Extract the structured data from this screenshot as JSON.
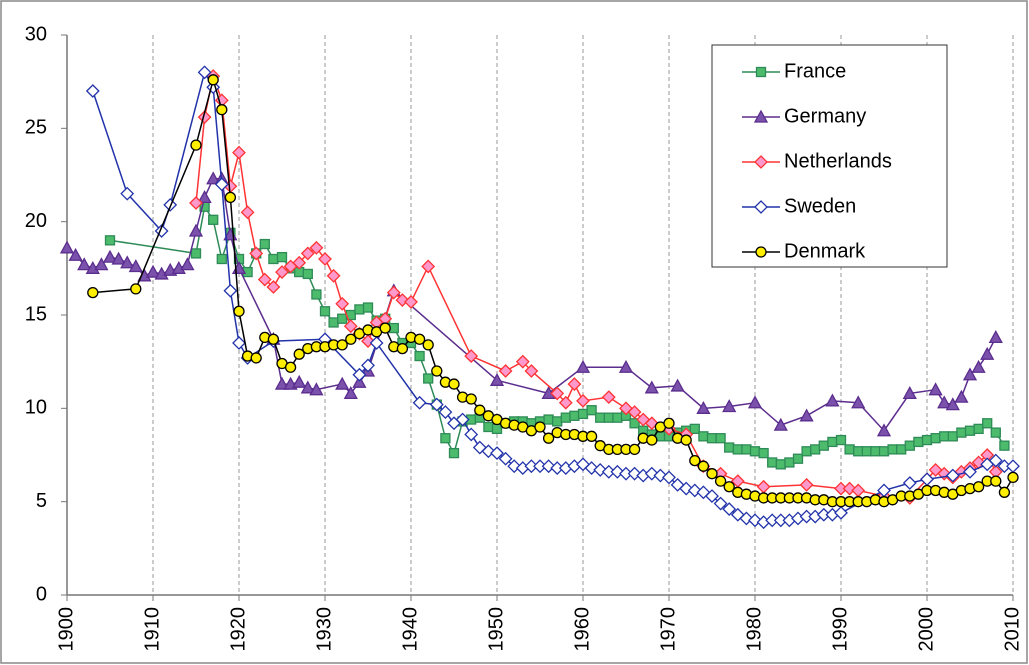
{
  "chart_data": {
    "type": "line",
    "xlim": [
      1900,
      2010
    ],
    "xticks": [
      1900,
      1910,
      1920,
      1930,
      1940,
      1950,
      1960,
      1970,
      1980,
      1990,
      2000,
      2010
    ],
    "ylim": [
      0,
      30
    ],
    "yticks": [
      0,
      5,
      10,
      15,
      20,
      25,
      30
    ],
    "grid": true,
    "legend": "top-right",
    "series": [
      {
        "name": "France",
        "color": "#2e8b57",
        "marker": "square",
        "marker_fill": "#4cbb6c",
        "x": [
          1905,
          1915,
          1916,
          1917,
          1918,
          1919,
          1920,
          1921,
          1922,
          1923,
          1924,
          1925,
          1926,
          1927,
          1928,
          1929,
          1930,
          1931,
          1932,
          1933,
          1934,
          1935,
          1936,
          1937,
          1938,
          1939,
          1940,
          1941,
          1942,
          1943,
          1944,
          1945,
          1946,
          1947,
          1948,
          1949,
          1950,
          1951,
          1952,
          1953,
          1954,
          1955,
          1956,
          1957,
          1958,
          1959,
          1960,
          1961,
          1962,
          1963,
          1964,
          1965,
          1966,
          1967,
          1968,
          1969,
          1970,
          1971,
          1972,
          1973,
          1974,
          1975,
          1976,
          1977,
          1978,
          1979,
          1980,
          1981,
          1982,
          1983,
          1984,
          1985,
          1986,
          1987,
          1988,
          1989,
          1990,
          1991,
          1992,
          1993,
          1994,
          1995,
          1996,
          1997,
          1998,
          1999,
          2000,
          2001,
          2002,
          2003,
          2004,
          2005,
          2006,
          2007,
          2008,
          2009
        ],
        "values": [
          19.0,
          18.3,
          20.8,
          20.1,
          18.0,
          19.4,
          18.0,
          17.3,
          18.3,
          18.8,
          18.0,
          18.1,
          17.5,
          17.3,
          17.2,
          16.1,
          15.2,
          14.6,
          14.8,
          15.0,
          15.3,
          15.4,
          14.7,
          14.8,
          14.3,
          13.5,
          13.5,
          12.8,
          11.6,
          10.2,
          8.4,
          7.6,
          9.3,
          9.4,
          9.5,
          9.0,
          8.9,
          9.2,
          9.3,
          9.3,
          9.2,
          9.3,
          9.4,
          9.3,
          9.5,
          9.6,
          9.7,
          9.9,
          9.5,
          9.5,
          9.5,
          9.6,
          9.2,
          8.8,
          8.6,
          8.5,
          8.5,
          8.7,
          8.8,
          8.9,
          8.5,
          8.4,
          8.4,
          7.9,
          7.8,
          7.8,
          7.7,
          7.6,
          7.1,
          7.0,
          7.1,
          7.3,
          7.7,
          7.8,
          8.0,
          8.2,
          8.3,
          7.8,
          7.7,
          7.7,
          7.7,
          7.7,
          7.8,
          7.8,
          8.0,
          8.2,
          8.3,
          8.4,
          8.5,
          8.5,
          8.7,
          8.8,
          8.9,
          9.2,
          8.7,
          8.0
        ]
      },
      {
        "name": "Germany",
        "color": "#5b2d8e",
        "marker": "triangle",
        "marker_fill": "#7b52ab",
        "x": [
          1900,
          1901,
          1902,
          1903,
          1904,
          1905,
          1906,
          1907,
          1908,
          1909,
          1910,
          1911,
          1912,
          1913,
          1914,
          1915,
          1916,
          1917,
          1918,
          1919,
          1920,
          1924,
          1925,
          1926,
          1927,
          1928,
          1929,
          1932,
          1933,
          1934,
          1935,
          1938,
          1950,
          1956,
          1960,
          1965,
          1968,
          1971,
          1974,
          1977,
          1980,
          1983,
          1986,
          1989,
          1992,
          1995,
          1998,
          2001,
          2002,
          2003,
          2004,
          2005,
          2006,
          2007,
          2008
        ],
        "values": [
          18.6,
          18.2,
          17.7,
          17.5,
          17.7,
          18.1,
          18.0,
          17.8,
          17.6,
          17.1,
          17.3,
          17.2,
          17.4,
          17.5,
          17.7,
          19.5,
          21.3,
          22.3,
          22.3,
          19.3,
          17.5,
          13.7,
          11.3,
          11.3,
          11.4,
          11.1,
          11.0,
          11.3,
          10.8,
          11.4,
          12.0,
          16.3,
          11.5,
          10.8,
          12.2,
          12.2,
          11.1,
          11.2,
          10.0,
          10.1,
          10.3,
          9.1,
          9.6,
          10.4,
          10.3,
          8.8,
          10.8,
          11.0,
          10.3,
          10.2,
          10.6,
          11.8,
          12.2,
          12.9,
          13.8
        ]
      },
      {
        "name": "Netherlands",
        "color": "#ff3333",
        "marker": "diamond",
        "marker_fill": "#ff99cc",
        "x": [
          1915,
          1916,
          1917,
          1918,
          1919,
          1920,
          1921,
          1922,
          1923,
          1924,
          1925,
          1926,
          1927,
          1928,
          1929,
          1930,
          1931,
          1932,
          1933,
          1934,
          1935,
          1936,
          1937,
          1938,
          1939,
          1940,
          1942,
          1947,
          1951,
          1953,
          1954,
          1957,
          1958,
          1959,
          1960,
          1963,
          1965,
          1966,
          1967,
          1968,
          1970,
          1972,
          1974,
          1976,
          1978,
          1981,
          1986,
          1990,
          1991,
          1992,
          1995,
          1998,
          2000,
          2001,
          2002,
          2003,
          2004,
          2005,
          2006,
          2007,
          2008
        ],
        "values": [
          21.0,
          25.6,
          27.8,
          26.5,
          21.9,
          23.7,
          20.5,
          18.3,
          16.9,
          16.5,
          17.3,
          17.6,
          17.8,
          18.3,
          18.6,
          18.0,
          17.1,
          15.6,
          14.4,
          14.0,
          13.6,
          14.6,
          14.8,
          16.2,
          15.8,
          15.7,
          17.6,
          12.8,
          12.0,
          12.5,
          12.0,
          10.8,
          10.3,
          11.3,
          10.4,
          10.6,
          10.0,
          9.8,
          9.4,
          9.2,
          8.9,
          8.6,
          6.9,
          6.5,
          6.1,
          5.8,
          5.9,
          5.7,
          5.7,
          5.6,
          5.3,
          5.2,
          6.2,
          6.7,
          6.5,
          6.3,
          6.6,
          6.8,
          7.1,
          7.5,
          6.6
        ]
      },
      {
        "name": "Sweden",
        "color": "#2233aa",
        "marker": "diamond",
        "marker_fill": "#ffffff",
        "x": [
          1903,
          1907,
          1911,
          1912,
          1916,
          1917,
          1918,
          1919,
          1920,
          1921,
          1924,
          1930,
          1934,
          1935,
          1936,
          1941,
          1943,
          1944,
          1945,
          1946,
          1947,
          1948,
          1949,
          1950,
          1951,
          1952,
          1953,
          1954,
          1955,
          1956,
          1957,
          1958,
          1959,
          1960,
          1961,
          1962,
          1963,
          1964,
          1965,
          1966,
          1967,
          1968,
          1969,
          1970,
          1971,
          1972,
          1973,
          1974,
          1975,
          1976,
          1977,
          1978,
          1979,
          1980,
          1981,
          1982,
          1983,
          1984,
          1985,
          1986,
          1987,
          1988,
          1989,
          1990,
          1995,
          1998,
          2000,
          2003,
          2005,
          2007,
          2008,
          2009,
          2010
        ],
        "values": [
          27.0,
          21.5,
          19.5,
          20.9,
          28.0,
          27.2,
          22.0,
          16.3,
          13.5,
          12.7,
          13.6,
          13.7,
          11.8,
          12.3,
          13.5,
          10.3,
          10.2,
          9.8,
          9.2,
          9.4,
          8.6,
          7.9,
          7.7,
          7.6,
          7.3,
          6.9,
          6.8,
          6.9,
          6.9,
          6.9,
          6.8,
          6.8,
          6.9,
          7.0,
          6.8,
          6.7,
          6.6,
          6.6,
          6.5,
          6.5,
          6.4,
          6.5,
          6.4,
          6.3,
          5.9,
          5.7,
          5.6,
          5.5,
          5.3,
          4.9,
          4.6,
          4.3,
          4.1,
          4.0,
          3.9,
          4.0,
          4.0,
          4.0,
          4.1,
          4.2,
          4.2,
          4.3,
          4.3,
          4.4,
          5.6,
          6.0,
          6.2,
          6.4,
          6.6,
          7.0,
          7.2,
          6.9,
          6.9
        ]
      },
      {
        "name": "Denmark",
        "color": "#000000",
        "marker": "circle",
        "marker_fill": "#ffee00",
        "x": [
          1903,
          1908,
          1915,
          1917,
          1918,
          1919,
          1920,
          1921,
          1922,
          1923,
          1924,
          1925,
          1926,
          1927,
          1928,
          1929,
          1930,
          1931,
          1932,
          1933,
          1934,
          1935,
          1936,
          1937,
          1938,
          1939,
          1940,
          1941,
          1942,
          1943,
          1944,
          1945,
          1946,
          1947,
          1948,
          1949,
          1950,
          1951,
          1952,
          1953,
          1954,
          1955,
          1956,
          1957,
          1958,
          1959,
          1960,
          1961,
          1962,
          1963,
          1964,
          1965,
          1966,
          1967,
          1968,
          1969,
          1970,
          1971,
          1972,
          1973,
          1974,
          1975,
          1976,
          1977,
          1978,
          1979,
          1980,
          1981,
          1982,
          1983,
          1984,
          1985,
          1986,
          1987,
          1988,
          1989,
          1990,
          1991,
          1992,
          1993,
          1994,
          1995,
          1996,
          1997,
          1998,
          1999,
          2000,
          2001,
          2002,
          2003,
          2004,
          2005,
          2006,
          2007,
          2008,
          2009,
          2010
        ],
        "values": [
          16.2,
          16.4,
          24.1,
          27.6,
          26.0,
          21.3,
          15.2,
          12.8,
          12.7,
          13.8,
          13.7,
          12.4,
          12.2,
          12.9,
          13.2,
          13.3,
          13.3,
          13.4,
          13.4,
          13.7,
          14.0,
          14.2,
          14.1,
          14.3,
          13.3,
          13.2,
          13.8,
          13.7,
          13.4,
          12.0,
          11.4,
          11.3,
          10.6,
          10.5,
          9.9,
          9.6,
          9.4,
          9.2,
          9.1,
          9.0,
          8.8,
          9.0,
          8.4,
          8.7,
          8.6,
          8.6,
          8.5,
          8.5,
          8.0,
          7.8,
          7.8,
          7.8,
          7.8,
          8.4,
          8.3,
          9.0,
          9.2,
          8.4,
          8.3,
          7.2,
          6.9,
          6.5,
          6.1,
          5.8,
          5.5,
          5.4,
          5.3,
          5.2,
          5.2,
          5.2,
          5.2,
          5.2,
          5.2,
          5.1,
          5.1,
          5.0,
          5.0,
          5.0,
          5.0,
          5.0,
          5.1,
          5.0,
          5.1,
          5.3,
          5.3,
          5.4,
          5.6,
          5.6,
          5.5,
          5.4,
          5.6,
          5.7,
          5.8,
          6.1,
          6.1,
          5.5,
          6.3
        ]
      }
    ]
  }
}
